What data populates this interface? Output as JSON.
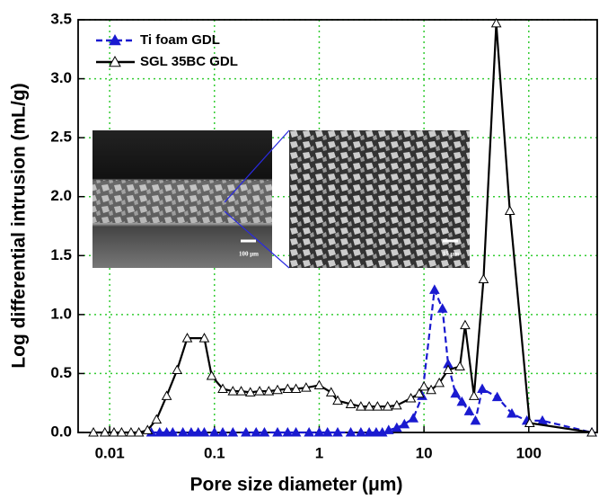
{
  "chart_data": {
    "type": "line",
    "xlabel": "Pore size diameter (μm)",
    "ylabel": "Log differential intrusion (mL/g)",
    "xscale": "log",
    "grid": true,
    "legend": "upper left",
    "xlim": [
      0.005,
      450
    ],
    "ylim": [
      0,
      3.5
    ],
    "xticks": [
      0.01,
      0.1,
      1,
      10,
      100
    ],
    "yticks": [
      {
        "value": 0,
        "label": "0.0"
      },
      0.5,
      {
        "value": 1,
        "label": "1.0"
      },
      1.5,
      {
        "value": 2,
        "label": "2.0"
      },
      2.5,
      {
        "value": 3,
        "label": "3.0"
      },
      3.5
    ],
    "inset_scale_labels": [
      "100 μm",
      "15 μm"
    ],
    "series": [
      {
        "name": "Ti foam GDL",
        "color": "#1a1ad0",
        "marker": "filled",
        "dash": true,
        "x": [
          0.025,
          0.03,
          0.035,
          0.04,
          0.05,
          0.06,
          0.07,
          0.08,
          0.1,
          0.12,
          0.15,
          0.2,
          0.25,
          0.3,
          0.4,
          0.5,
          0.6,
          0.8,
          1,
          1.2,
          1.5,
          2,
          2.5,
          3,
          3.5,
          4,
          4.6,
          5.5,
          6.5,
          7.9,
          9.6,
          12.6,
          15,
          17,
          20,
          23,
          27,
          31,
          36,
          50,
          69,
          96,
          135,
          400
        ],
        "values": [
          0,
          0,
          0,
          0,
          0,
          0,
          0,
          0,
          0,
          0,
          0,
          0,
          0,
          0,
          0,
          0,
          0,
          0,
          0,
          0,
          0,
          0,
          0,
          0,
          0,
          0,
          0.02,
          0.04,
          0.07,
          0.12,
          0.31,
          1.21,
          1.05,
          0.58,
          0.33,
          0.26,
          0.18,
          0.1,
          0.37,
          0.3,
          0.16,
          0.1,
          0.1,
          0
        ]
      },
      {
        "name": "SGL 35BC GDL",
        "color": "#000000",
        "marker": "open",
        "dash": false,
        "x": [
          0.007,
          0.009,
          0.011,
          0.013,
          0.016,
          0.019,
          0.023,
          0.028,
          0.035,
          0.044,
          0.055,
          0.08,
          0.094,
          0.12,
          0.15,
          0.18,
          0.22,
          0.27,
          0.33,
          0.4,
          0.5,
          0.6,
          0.75,
          1,
          1.3,
          1.5,
          2,
          2.5,
          3,
          3.6,
          4.5,
          5.5,
          7.5,
          9,
          10,
          11.7,
          14,
          17,
          22,
          24.7,
          30,
          37,
          49,
          66,
          102,
          400
        ],
        "values": [
          0,
          0,
          0,
          0,
          0,
          0,
          0.02,
          0.11,
          0.31,
          0.53,
          0.8,
          0.8,
          0.48,
          0.37,
          0.35,
          0.35,
          0.34,
          0.35,
          0.35,
          0.36,
          0.37,
          0.37,
          0.38,
          0.4,
          0.34,
          0.27,
          0.24,
          0.22,
          0.22,
          0.22,
          0.22,
          0.23,
          0.29,
          0.33,
          0.39,
          0.36,
          0.42,
          0.53,
          0.56,
          0.91,
          0.31,
          1.3,
          3.47,
          1.88,
          0.08,
          0
        ]
      }
    ]
  }
}
